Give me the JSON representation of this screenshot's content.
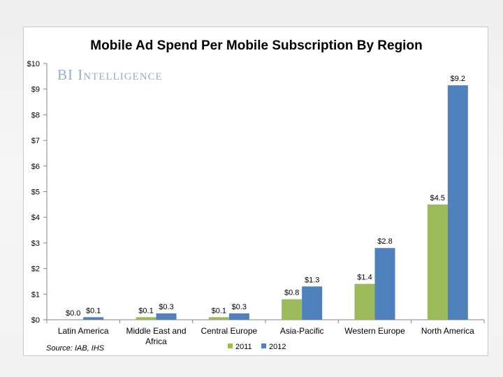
{
  "brand": {
    "prefix": "BI",
    "suffix": "Intelligence"
  },
  "chart_data": {
    "type": "bar",
    "title": "Mobile Ad Spend Per Mobile Subscription By Region",
    "xlabel": "",
    "ylabel": "",
    "ylim": [
      0,
      10
    ],
    "yticks": [
      "$0",
      "$1",
      "$2",
      "$3",
      "$4",
      "$5",
      "$6",
      "$7",
      "$8",
      "$9",
      "$10"
    ],
    "categories": [
      "Latin America",
      "Middle East and Africa",
      "Central Europe",
      "Asia-Pacific",
      "Western Europe",
      "North America"
    ],
    "category_lines": [
      [
        "Latin America"
      ],
      [
        "Middle East and",
        "Africa"
      ],
      [
        "Central Europe"
      ],
      [
        "Asia-Pacific"
      ],
      [
        "Western Europe"
      ],
      [
        "North America"
      ]
    ],
    "series": [
      {
        "name": "2011",
        "values": [
          0.0,
          0.1,
          0.1,
          0.8,
          1.4,
          4.5
        ],
        "labels": [
          "$0.0",
          "$0.1",
          "$0.1",
          "$0.8",
          "$1.4",
          "$4.5"
        ],
        "color": "#9bbb59"
      },
      {
        "name": "2012",
        "values": [
          0.1,
          0.25,
          0.25,
          1.3,
          2.8,
          9.15
        ],
        "labels": [
          "$0.1",
          "$0.3",
          "$0.3",
          "$1.3",
          "$2.8",
          "$9.2"
        ],
        "color": "#4f81bd"
      }
    ],
    "grid": false,
    "legend": "bottom-center",
    "source": "Source: IAB, IHS"
  }
}
